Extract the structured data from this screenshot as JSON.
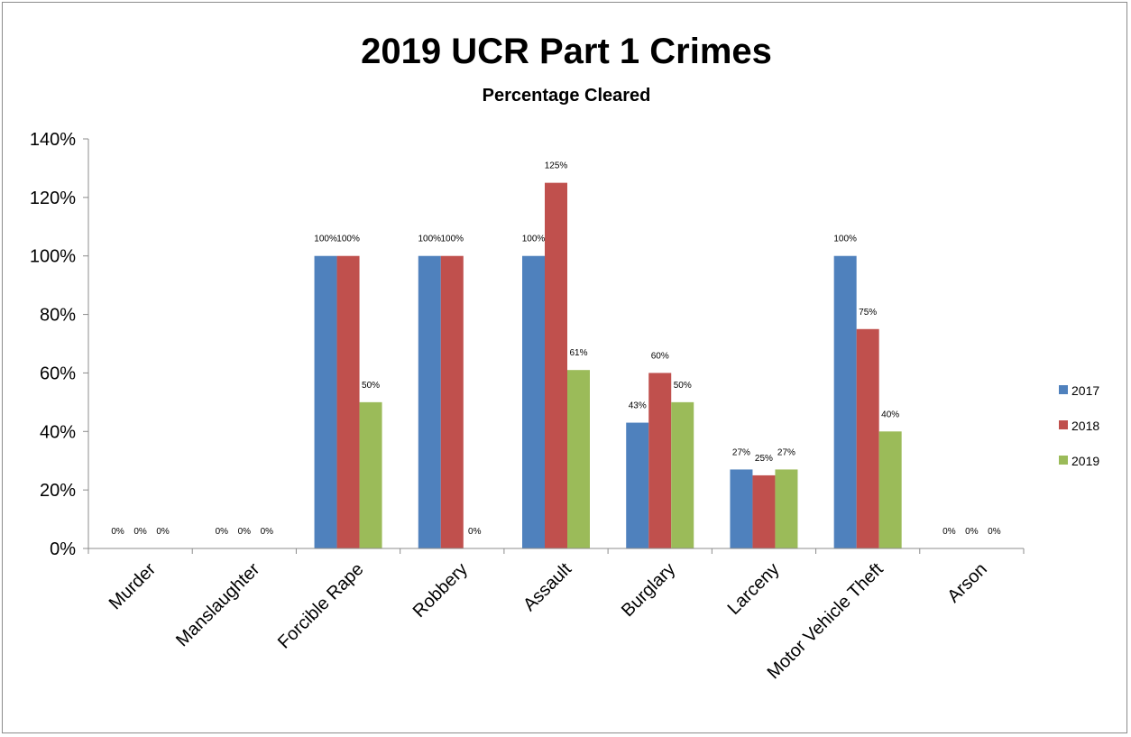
{
  "chart_data": {
    "type": "bar",
    "title": "2019 UCR Part 1 Crimes",
    "subtitle": "Percentage Cleared",
    "categories": [
      "Murder",
      "Manslaughter",
      "Forcible Rape",
      "Robbery",
      "Assault",
      "Burglary",
      "Larceny",
      "Motor Vehicle Theft",
      "Arson"
    ],
    "series": [
      {
        "name": "2017",
        "color": "#4f81bd",
        "values": [
          0,
          0,
          100,
          100,
          100,
          43,
          27,
          100,
          0
        ]
      },
      {
        "name": "2018",
        "color": "#c0504d",
        "values": [
          0,
          0,
          100,
          100,
          125,
          60,
          25,
          75,
          0
        ]
      },
      {
        "name": "2019",
        "color": "#9bbb59",
        "values": [
          0,
          0,
          50,
          0,
          61,
          50,
          27,
          40,
          0
        ]
      }
    ],
    "data_labels": [
      [
        "0%",
        "0%",
        "100%",
        "100%",
        "100%",
        "43%",
        "27%",
        "100%",
        "0%"
      ],
      [
        "0%",
        "0%",
        "100%",
        "100%",
        "125%",
        "60%",
        "25%",
        "75%",
        "0%"
      ],
      [
        "0%",
        "0%",
        "50%",
        "0%",
        "61%",
        "50%",
        "27%",
        "40%",
        "0%"
      ]
    ],
    "yticks": [
      "0%",
      "20%",
      "40%",
      "60%",
      "80%",
      "100%",
      "120%",
      "140%"
    ],
    "ylim": [
      0,
      140
    ],
    "xlabel": "",
    "ylabel": "",
    "grid": false,
    "legend": "right"
  }
}
